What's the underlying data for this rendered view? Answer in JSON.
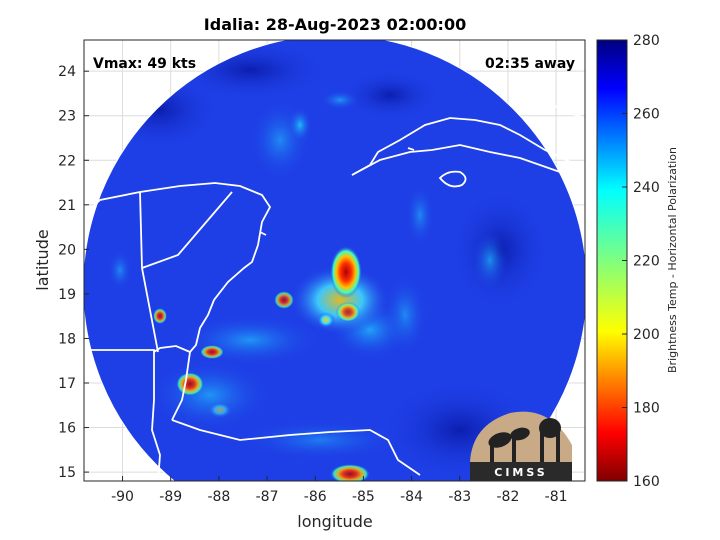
{
  "figure": {
    "title": "Idalia: 28-Aug-2023 02:00:00",
    "vmax_text": "Vmax: 49 kts",
    "time_away": "02:35 away",
    "logo_text": "CIMSS"
  },
  "axes": {
    "xlabel": "longitude",
    "ylabel": "latitude",
    "xlim": [
      -90.8,
      -80.4
    ],
    "ylim": [
      14.8,
      24.7
    ],
    "xticks": [
      "-90",
      "-89",
      "-88",
      "-87",
      "-86",
      "-85",
      "-84",
      "-83",
      "-82",
      "-81"
    ],
    "yticks": [
      "15",
      "16",
      "17",
      "18",
      "19",
      "20",
      "21",
      "22",
      "23",
      "24"
    ],
    "grid": true
  },
  "colorbar": {
    "label": "Brightness Temp - Horizontal Polarization",
    "range": [
      160,
      280
    ],
    "ticks": [
      "280",
      "260",
      "240",
      "220",
      "200",
      "180",
      "160"
    ],
    "colormap": "jet"
  },
  "colors": {
    "background_field": "#1e3fe6",
    "coastline": "#ffffff"
  }
}
